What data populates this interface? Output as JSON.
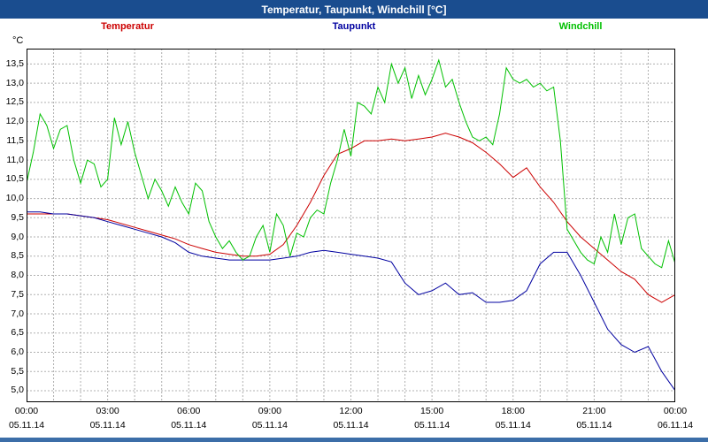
{
  "titlebar": {
    "title": "Temperatur, Taupunkt, Windchill [°C]"
  },
  "colors": {
    "titlebar_bg": "#1a4d8f",
    "bottom_strip": "#3c6ea8",
    "grid": "#b0b0b0",
    "plot_border": "#000000",
    "temperatur": "#cc0000",
    "taupunkt": "#0000a0",
    "windchill": "#00c000"
  },
  "chart_data": {
    "type": "line",
    "title": "Temperatur, Taupunkt, Windchill [°C]",
    "ylabel": "°C",
    "xlabel": "",
    "grid": true,
    "legend_position": "top",
    "ylim": [
      4.7,
      13.9
    ],
    "yticks": [
      5.0,
      5.5,
      6.0,
      6.5,
      7.0,
      7.5,
      8.0,
      8.5,
      9.0,
      9.5,
      10.0,
      10.5,
      11.0,
      11.5,
      12.0,
      12.5,
      13.0,
      13.5
    ],
    "ytick_labels": [
      "5,0",
      "5,5",
      "6,0",
      "6,5",
      "7,0",
      "7,5",
      "8,0",
      "8,5",
      "9,0",
      "9,5",
      "10,0",
      "10,5",
      "11,0",
      "11,5",
      "12,0",
      "12,5",
      "13,0",
      "13,5"
    ],
    "xlim_hours": [
      0,
      24
    ],
    "x_grid_step_hours": 1,
    "xticks": [
      {
        "hour": 0,
        "time": "00:00",
        "date": "05.11.14"
      },
      {
        "hour": 3,
        "time": "03:00",
        "date": "05.11.14"
      },
      {
        "hour": 6,
        "time": "06:00",
        "date": "05.11.14"
      },
      {
        "hour": 9,
        "time": "09:00",
        "date": "05.11.14"
      },
      {
        "hour": 12,
        "time": "12:00",
        "date": "05.11.14"
      },
      {
        "hour": 15,
        "time": "15:00",
        "date": "05.11.14"
      },
      {
        "hour": 18,
        "time": "18:00",
        "date": "05.11.14"
      },
      {
        "hour": 21,
        "time": "21:00",
        "date": "05.11.14"
      },
      {
        "hour": 24,
        "time": "00:00",
        "date": "06.11.14"
      }
    ],
    "series": [
      {
        "name": "Temperatur",
        "color": "#cc0000",
        "x_step_hours": 0.5,
        "values": [
          9.6,
          9.6,
          9.6,
          9.6,
          9.55,
          9.5,
          9.45,
          9.35,
          9.25,
          9.15,
          9.05,
          8.95,
          8.8,
          8.7,
          8.6,
          8.55,
          8.5,
          8.5,
          8.55,
          8.8,
          9.3,
          9.9,
          10.6,
          11.15,
          11.3,
          11.5,
          11.5,
          11.55,
          11.5,
          11.55,
          11.6,
          11.7,
          11.6,
          11.45,
          11.2,
          10.9,
          10.55,
          10.8,
          10.3,
          9.9,
          9.4,
          9.0,
          8.7,
          8.4,
          8.1,
          7.9,
          7.5,
          7.3,
          7.5
        ]
      },
      {
        "name": "Taupunkt",
        "color": "#0000a0",
        "x_step_hours": 0.5,
        "values": [
          9.65,
          9.65,
          9.6,
          9.6,
          9.55,
          9.5,
          9.4,
          9.3,
          9.2,
          9.1,
          9.0,
          8.85,
          8.6,
          8.5,
          8.45,
          8.4,
          8.4,
          8.4,
          8.4,
          8.45,
          8.5,
          8.6,
          8.65,
          8.6,
          8.55,
          8.5,
          8.45,
          8.35,
          7.8,
          7.5,
          7.6,
          7.8,
          7.5,
          7.55,
          7.3,
          7.3,
          7.35,
          7.6,
          8.3,
          8.6,
          8.6,
          8.0,
          7.3,
          6.6,
          6.2,
          6.0,
          6.15,
          5.5,
          5.0
        ]
      },
      {
        "name": "Windchill",
        "color": "#00c000",
        "x_step_hours": 0.25,
        "values": [
          10.4,
          11.2,
          12.2,
          11.9,
          11.3,
          11.8,
          11.9,
          11.0,
          10.4,
          11.0,
          10.9,
          10.3,
          10.5,
          12.1,
          11.4,
          12.0,
          11.2,
          10.6,
          10.0,
          10.5,
          10.2,
          9.8,
          10.3,
          9.9,
          9.6,
          10.4,
          10.2,
          9.4,
          9.0,
          8.7,
          8.9,
          8.6,
          8.4,
          8.5,
          9.0,
          9.3,
          8.6,
          9.6,
          9.3,
          8.5,
          9.1,
          9.0,
          9.5,
          9.7,
          9.6,
          10.4,
          11.0,
          11.8,
          11.1,
          12.5,
          12.4,
          12.2,
          12.9,
          12.5,
          13.5,
          13.0,
          13.4,
          12.6,
          13.2,
          12.7,
          13.1,
          13.6,
          12.9,
          13.1,
          12.5,
          12.0,
          11.6,
          11.5,
          11.6,
          11.4,
          12.2,
          13.4,
          13.1,
          13.0,
          13.1,
          12.9,
          13.0,
          12.8,
          12.9,
          11.5,
          9.2,
          8.9,
          8.6,
          8.4,
          8.3,
          9.0,
          8.6,
          9.6,
          8.8,
          9.5,
          9.6,
          8.7,
          8.5,
          8.3,
          8.2,
          8.9,
          8.3
        ]
      }
    ]
  }
}
